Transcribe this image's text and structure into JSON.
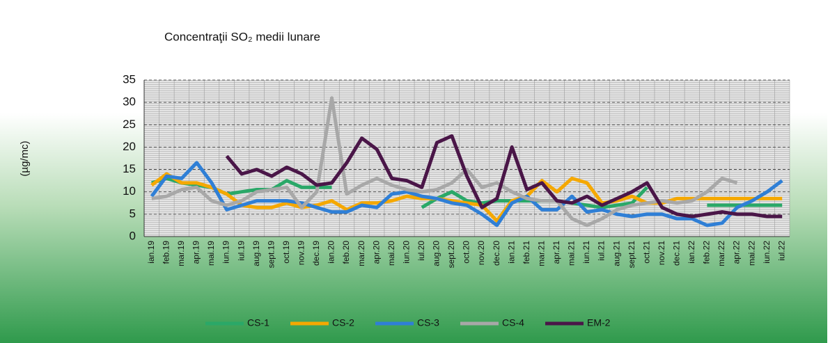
{
  "chart_data": {
    "type": "line",
    "title": "Concentraţii SO₂ medii lunare",
    "y_label": "(µg/mc)",
    "categories": [
      "ian.19",
      "feb.19",
      "mar.19",
      "apr.19",
      "mai.19",
      "iun.19",
      "iul.19",
      "aug.19",
      "sept.19",
      "oct.19",
      "nov.19",
      "dec.19",
      "ian.20",
      "feb.20",
      "mar.20",
      "apr.20",
      "mai.20",
      "iun.20",
      "iul.20",
      "aug.20",
      "sept.20",
      "oct.20",
      "nov.20",
      "dec.20",
      "ian.21",
      "feb.21",
      "mar.21",
      "apr.21",
      "mai.21",
      "iun.21",
      "iul.21",
      "aug.21",
      "sept.21",
      "oct.21",
      "nov.21",
      "dec.21",
      "ian.22",
      "feb.22",
      "mar.22",
      "apr.22",
      "mai.22",
      "iun.22",
      "iul.22"
    ],
    "series": [
      {
        "name": "CS-1",
        "color": "#2aa868",
        "values": [
          12,
          13,
          12,
          11.5,
          11,
          9.5,
          10,
          10.5,
          10.5,
          12.5,
          11,
          11,
          11,
          null,
          null,
          null,
          null,
          null,
          6.5,
          8.5,
          10,
          8,
          7.5,
          8,
          8,
          8,
          8,
          8,
          7.5,
          7,
          6.5,
          7,
          7.5,
          11,
          null,
          null,
          null,
          7,
          7,
          7,
          7,
          7,
          7
        ]
      },
      {
        "name": "CS-2",
        "color": "#f5a800",
        "values": [
          11.5,
          14,
          12,
          12,
          11,
          9.5,
          7,
          6.5,
          6.5,
          7.5,
          6.5,
          7,
          8,
          6,
          7.5,
          7.5,
          8,
          9,
          8.5,
          8.5,
          8,
          7.5,
          7,
          3.5,
          8,
          9,
          12.5,
          10,
          13,
          12,
          7.5,
          8,
          9,
          7.5,
          7.5,
          8.5,
          8.5,
          8.5,
          8.5,
          8.5,
          8.5,
          8.5,
          8.5
        ]
      },
      {
        "name": "CS-3",
        "color": "#2f7fd6",
        "values": [
          9,
          13.5,
          13,
          16.5,
          12,
          6,
          7,
          8,
          8,
          8,
          7.5,
          6.5,
          5.5,
          5.5,
          7,
          6.5,
          9.5,
          10,
          9,
          8.5,
          7.5,
          7,
          5,
          2.5,
          7.5,
          9,
          6,
          6,
          9,
          5.5,
          6,
          5,
          4.5,
          5,
          5,
          4,
          4,
          2.5,
          3,
          6.5,
          8,
          10,
          12.5
        ]
      },
      {
        "name": "CS-4",
        "color": "#a8a8a8",
        "values": [
          8.5,
          9,
          10.5,
          11,
          8,
          7,
          8,
          10,
          10.5,
          11,
          6.5,
          10,
          31,
          9.5,
          11.5,
          13,
          11.5,
          10.5,
          10,
          10.5,
          12,
          15,
          11,
          12,
          10,
          8.5,
          8,
          8,
          4,
          2.5,
          4,
          6,
          7,
          7.5,
          8,
          7.5,
          8,
          10,
          13,
          12,
          null,
          null,
          null
        ]
      },
      {
        "name": "EM-2",
        "color": "#4a1648",
        "values": [
          null,
          null,
          null,
          null,
          null,
          18,
          14,
          15,
          13.5,
          15.5,
          14,
          11.5,
          12,
          16.5,
          22,
          19.5,
          13,
          12.5,
          11,
          21,
          22.5,
          13.5,
          6.5,
          8.5,
          20,
          10.5,
          12,
          8,
          7.5,
          9,
          7,
          8.5,
          10,
          12,
          6.5,
          5,
          4.5,
          5,
          5.5,
          5,
          5,
          4.5,
          4.5
        ]
      }
    ],
    "ylim": [
      0,
      35
    ],
    "yticks": [
      0,
      5,
      10,
      15,
      20,
      25,
      30,
      35
    ],
    "grid": true,
    "legend": "bottom"
  }
}
